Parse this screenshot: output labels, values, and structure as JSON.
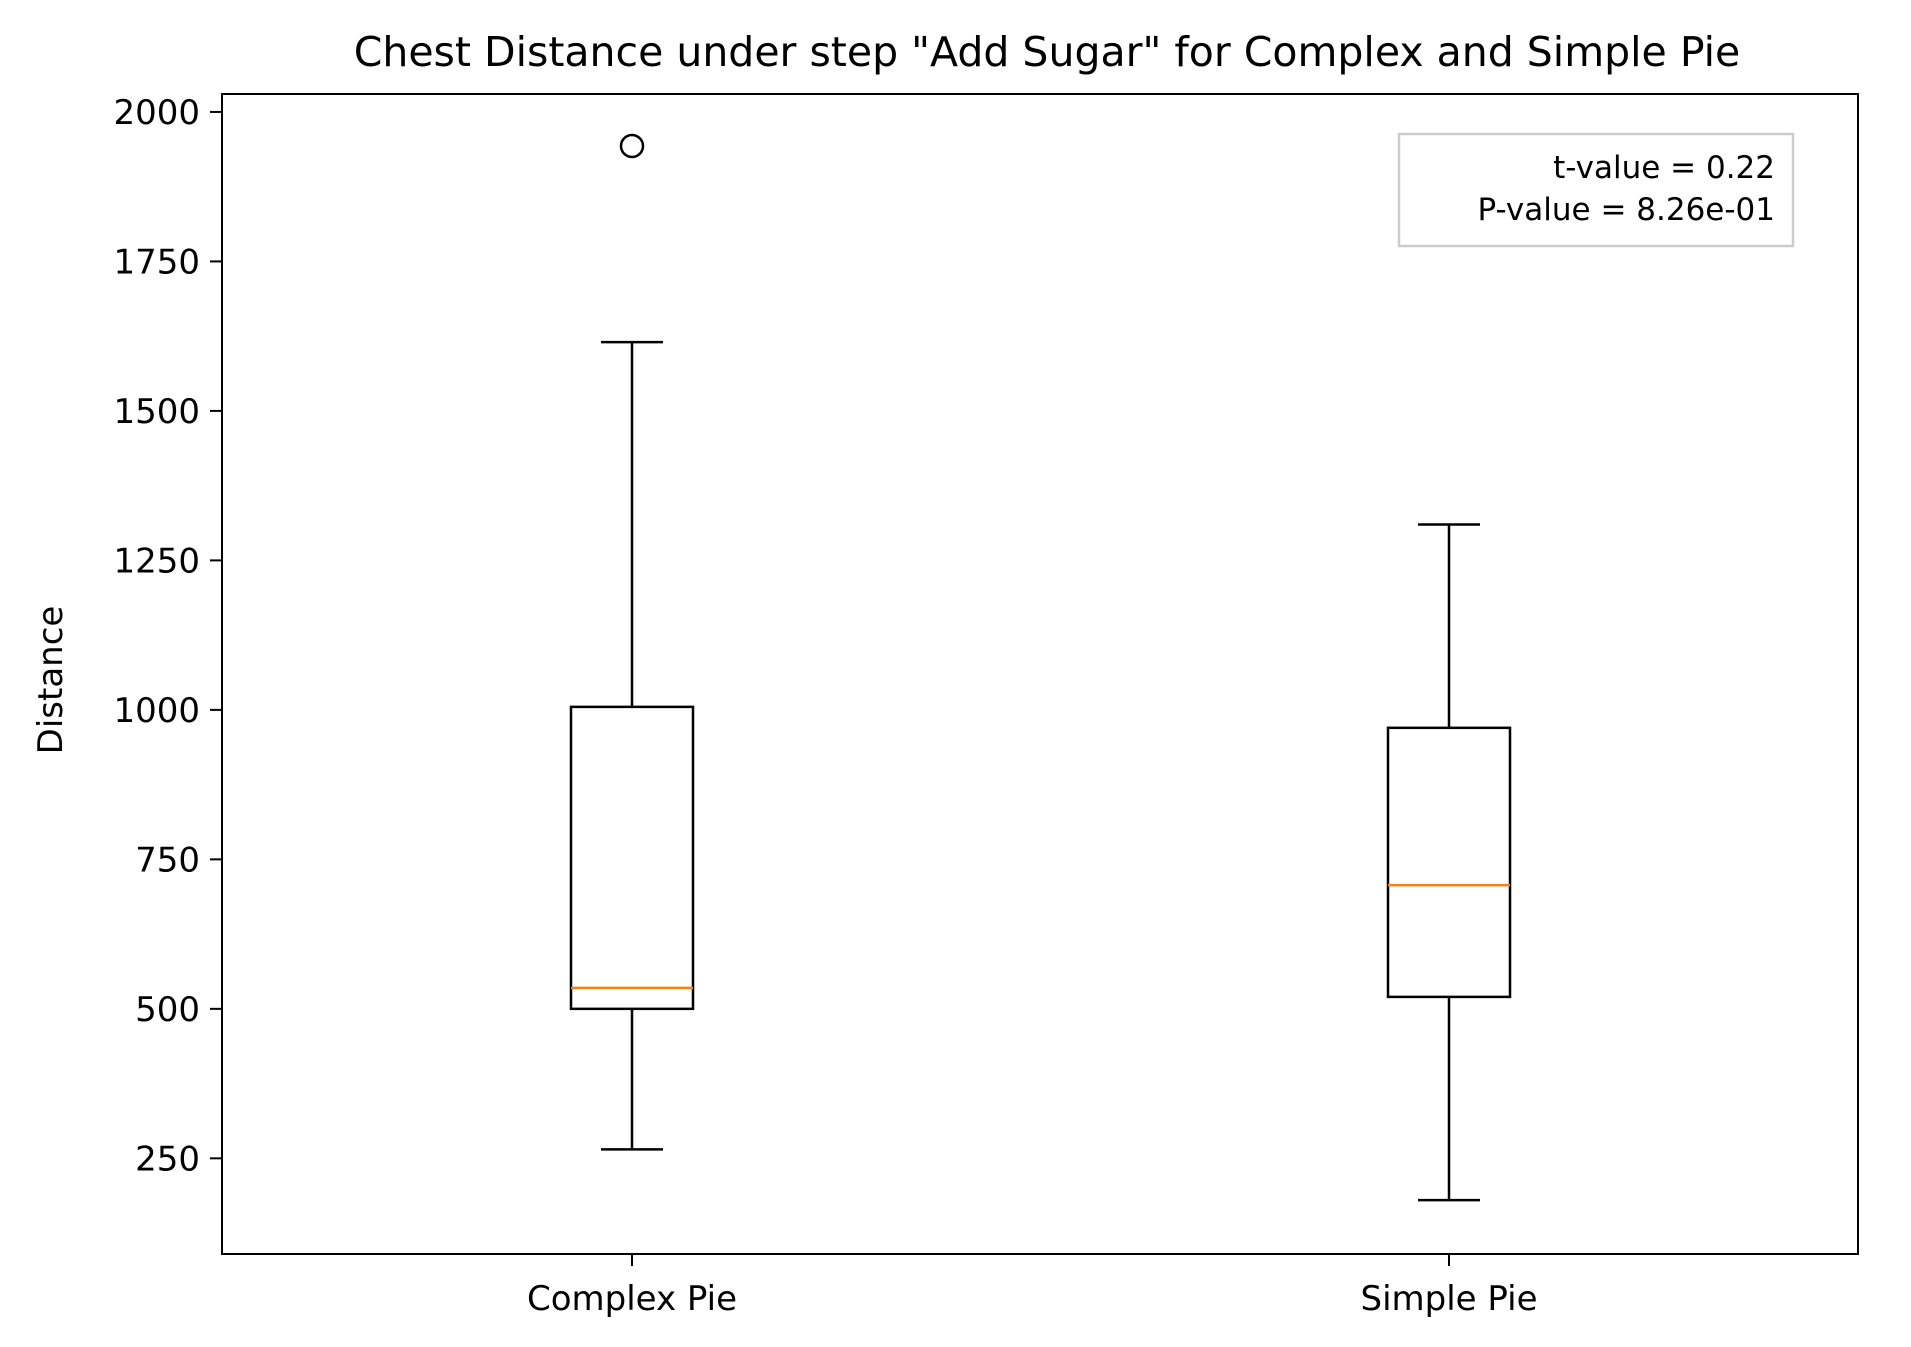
{
  "chart_data": {
    "type": "box",
    "title": "Chest Distance under step \"Add Sugar\" for Complex and Simple Pie",
    "xlabel": "",
    "ylabel": "Distance",
    "ylim": [
      90,
      2030
    ],
    "yticks": [
      250,
      500,
      750,
      1000,
      1250,
      1500,
      1750,
      2000
    ],
    "categories": [
      "Complex Pie",
      "Simple Pie"
    ],
    "boxes": [
      {
        "name": "Complex Pie",
        "whisker_low": 265,
        "q1": 500,
        "median": 535,
        "q3": 1005,
        "whisker_high": 1615,
        "outliers": [
          1943
        ]
      },
      {
        "name": "Simple Pie",
        "whisker_low": 180,
        "q1": 520,
        "median": 707,
        "q3": 970,
        "whisker_high": 1310,
        "outliers": []
      }
    ],
    "annotation": {
      "lines": [
        "t-value = 0.22",
        "P-value = 8.26e-01"
      ],
      "placement": "top-right"
    },
    "grid": false,
    "colors": {
      "box": "#000000",
      "median": "#ff7f0e",
      "annotation_border": "#cccccc"
    }
  }
}
